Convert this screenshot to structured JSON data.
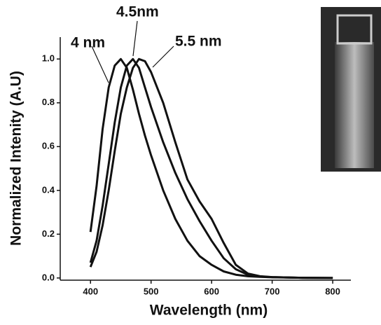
{
  "chart_data": {
    "type": "line",
    "xlabel": "Wavelength (nm)",
    "ylabel": "Normalized Intenity (A.U)",
    "x": [
      400,
      410,
      420,
      430,
      440,
      450,
      460,
      470,
      480,
      490,
      500,
      520,
      540,
      560,
      580,
      600,
      620,
      640,
      660,
      680,
      700,
      750,
      800
    ],
    "series": [
      {
        "name": "4 nm",
        "color": "#111111",
        "values": [
          0.21,
          0.42,
          0.68,
          0.87,
          0.97,
          1.0,
          0.96,
          0.86,
          0.75,
          0.65,
          0.56,
          0.4,
          0.27,
          0.17,
          0.1,
          0.06,
          0.03,
          0.015,
          0.008,
          0.005,
          0.003,
          0.001,
          0
        ]
      },
      {
        "name": "4.5nm",
        "color": "#111111",
        "values": [
          0.07,
          0.17,
          0.33,
          0.52,
          0.71,
          0.87,
          0.97,
          1.0,
          0.96,
          0.87,
          0.78,
          0.62,
          0.48,
          0.36,
          0.26,
          0.17,
          0.09,
          0.04,
          0.015,
          0.007,
          0.004,
          0.001,
          0
        ]
      },
      {
        "name": "5.5 nm",
        "color": "#111111",
        "values": [
          0.05,
          0.12,
          0.24,
          0.4,
          0.58,
          0.75,
          0.87,
          0.96,
          1.0,
          0.99,
          0.94,
          0.8,
          0.62,
          0.45,
          0.35,
          0.27,
          0.16,
          0.06,
          0.02,
          0.008,
          0.004,
          0.001,
          0
        ]
      }
    ],
    "xlim": [
      350,
      830
    ],
    "xticks": [
      400,
      500,
      600,
      700,
      800
    ],
    "ylim": [
      -0.01,
      1.1
    ],
    "yticks": [
      {
        "value": 0,
        "label": "0.0"
      },
      0.2,
      0.4,
      0.6,
      0.8,
      {
        "value": 1,
        "label": "1.0"
      }
    ],
    "grid": false
  }
}
